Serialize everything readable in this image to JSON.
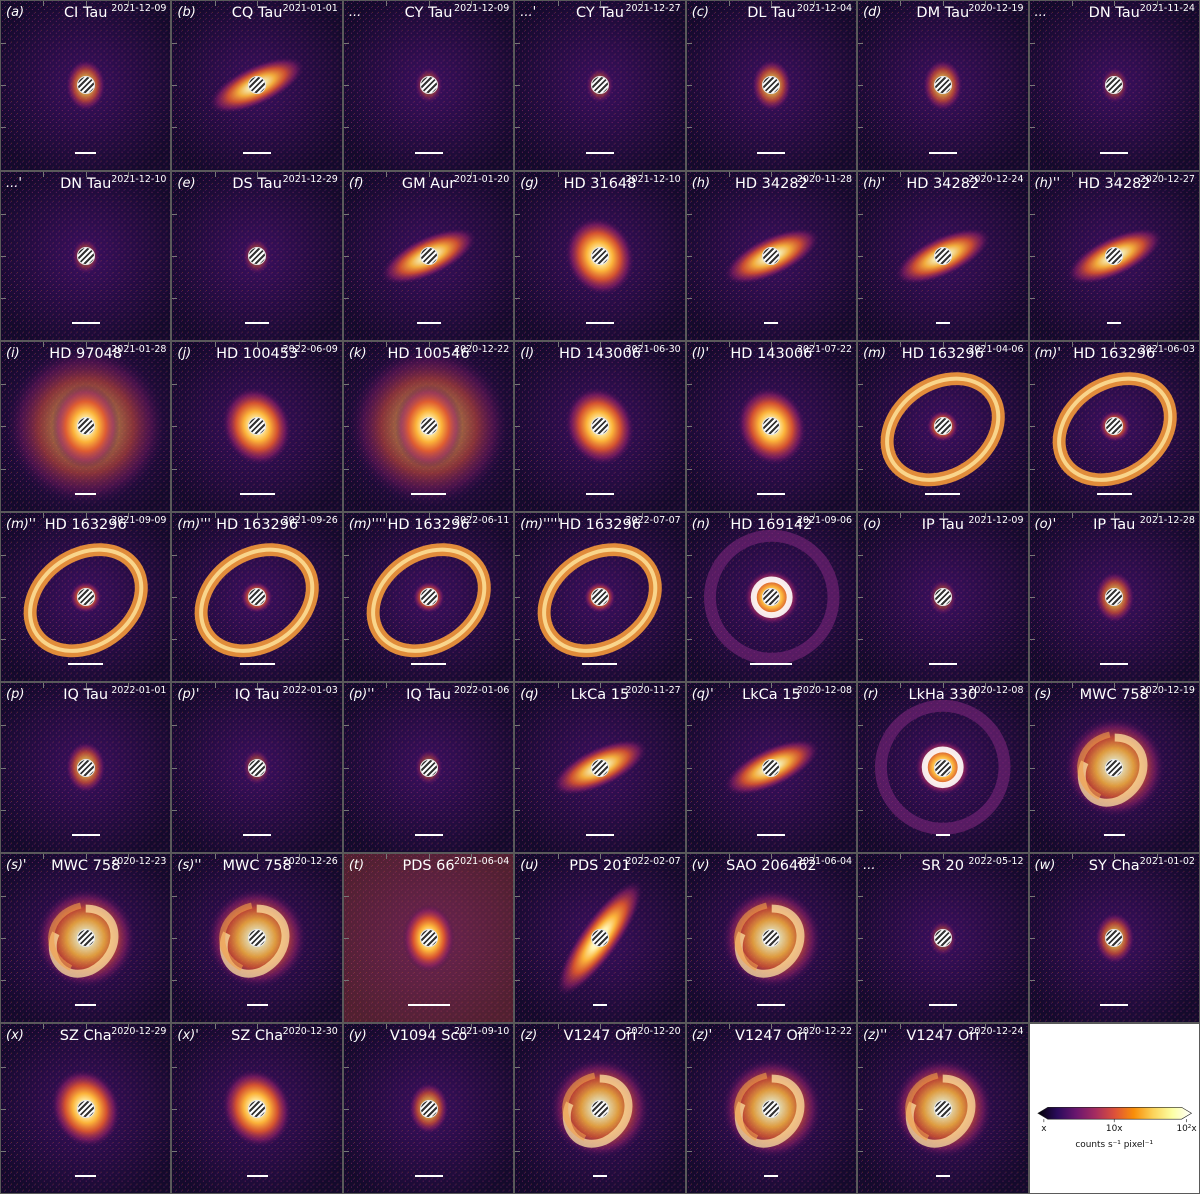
{
  "colors": {
    "background": "#120a2a",
    "mask_light": "#ffffff",
    "mask_dark": "#333333"
  },
  "panels": [
    {
      "label": "(a)",
      "name": "CI Tau",
      "date": "2021-12-09",
      "morph": "compact",
      "scale": 0.15
    },
    {
      "label": "(b)",
      "name": "CQ Tau",
      "date": "2021-01-01",
      "morph": "incl_disk",
      "scale": 0.2
    },
    {
      "label": "...",
      "name": "CY Tau",
      "date": "2021-12-09",
      "morph": "faint",
      "scale": 0.2
    },
    {
      "label": "...'",
      "name": "CY Tau",
      "date": "2021-12-27",
      "morph": "faint",
      "scale": 0.2
    },
    {
      "label": "(c)",
      "name": "DL Tau",
      "date": "2021-12-04",
      "morph": "compact",
      "scale": 0.2
    },
    {
      "label": "(d)",
      "name": "DM Tau",
      "date": "2020-12-19",
      "morph": "compact",
      "scale": 0.2
    },
    {
      "label": "...",
      "name": "DN Tau",
      "date": "2021-11-24",
      "morph": "faint",
      "scale": 0.2
    },
    {
      "label": "...'",
      "name": "DN Tau",
      "date": "2021-12-10",
      "morph": "faint",
      "scale": 0.2
    },
    {
      "label": "(e)",
      "name": "DS Tau",
      "date": "2021-12-29",
      "morph": "faint",
      "scale": 0.17
    },
    {
      "label": "(f)",
      "name": "GM Aur",
      "date": "2021-01-20",
      "morph": "incl_disk",
      "scale": 0.17
    },
    {
      "label": "(g)",
      "name": "HD 31648",
      "date": "2021-12-10",
      "morph": "bright_disk",
      "scale": 0.2
    },
    {
      "label": "(h)",
      "name": "HD 34282",
      "date": "2020-11-28",
      "morph": "incl_disk",
      "scale": 0.1
    },
    {
      "label": "(h)'",
      "name": "HD 34282",
      "date": "2020-12-24",
      "morph": "incl_disk",
      "scale": 0.1
    },
    {
      "label": "(h)''",
      "name": "HD 34282",
      "date": "2020-12-27",
      "morph": "incl_disk",
      "scale": 0.1
    },
    {
      "label": "(i)",
      "name": "HD 97048",
      "date": "2021-01-28",
      "morph": "halo",
      "scale": 0.15
    },
    {
      "label": "(j)",
      "name": "HD 100453",
      "date": "2022-06-09",
      "morph": "bright_disk",
      "scale": 0.25
    },
    {
      "label": "(k)",
      "name": "HD 100546",
      "date": "2020-12-22",
      "morph": "halo",
      "scale": 0.25
    },
    {
      "label": "(l)",
      "name": "HD 143006",
      "date": "2021-06-30",
      "morph": "bright_disk",
      "scale": 0.2
    },
    {
      "label": "(l)'",
      "name": "HD 143006",
      "date": "2021-07-22",
      "morph": "bright_disk",
      "scale": 0.2
    },
    {
      "label": "(m)",
      "name": "HD 163296",
      "date": "2021-04-06",
      "morph": "ring",
      "scale": 0.25
    },
    {
      "label": "(m)'",
      "name": "HD 163296",
      "date": "2021-06-03",
      "morph": "ring",
      "scale": 0.25
    },
    {
      "label": "(m)''",
      "name": "HD 163296",
      "date": "2021-09-09",
      "morph": "ring",
      "scale": 0.25
    },
    {
      "label": "(m)'''",
      "name": "HD 163296",
      "date": "2021-09-26",
      "morph": "ring",
      "scale": 0.25
    },
    {
      "label": "(m)''''",
      "name": "HD 163296",
      "date": "2022-06-11",
      "morph": "ring",
      "scale": 0.25
    },
    {
      "label": "(m)'''''",
      "name": "HD 163296",
      "date": "2022-07-07",
      "morph": "ring",
      "scale": 0.25
    },
    {
      "label": "(n)",
      "name": "HD 169142",
      "date": "2021-09-06",
      "morph": "face_ring",
      "scale": 0.3
    },
    {
      "label": "(o)",
      "name": "IP Tau",
      "date": "2021-12-09",
      "morph": "faint",
      "scale": 0.2
    },
    {
      "label": "(o)'",
      "name": "IP Tau",
      "date": "2021-12-28",
      "morph": "compact",
      "scale": 0.2
    },
    {
      "label": "(p)",
      "name": "IQ Tau",
      "date": "2022-01-01",
      "morph": "compact",
      "scale": 0.2
    },
    {
      "label": "(p)'",
      "name": "IQ Tau",
      "date": "2022-01-03",
      "morph": "faint",
      "scale": 0.2
    },
    {
      "label": "(p)''",
      "name": "IQ Tau",
      "date": "2022-01-06",
      "morph": "faint",
      "scale": 0.2
    },
    {
      "label": "(q)",
      "name": "LkCa 15",
      "date": "2020-11-27",
      "morph": "incl_disk",
      "scale": 0.2
    },
    {
      "label": "(q)'",
      "name": "LkCa 15",
      "date": "2020-12-08",
      "morph": "incl_disk",
      "scale": 0.2
    },
    {
      "label": "(r)",
      "name": "LkHa 330",
      "date": "2020-12-08",
      "morph": "face_ring",
      "scale": 0.1
    },
    {
      "label": "(s)",
      "name": "MWC 758",
      "date": "2020-12-19",
      "morph": "spiral",
      "scale": 0.15
    },
    {
      "label": "(s)'",
      "name": "MWC 758",
      "date": "2020-12-23",
      "morph": "spiral",
      "scale": 0.15
    },
    {
      "label": "(s)''",
      "name": "MWC 758",
      "date": "2020-12-26",
      "morph": "spiral",
      "scale": 0.15
    },
    {
      "label": "(t)",
      "name": "PDS 66",
      "date": "2021-06-04",
      "morph": "noisy",
      "scale": 0.3
    },
    {
      "label": "(u)",
      "name": "PDS 201",
      "date": "2022-02-07",
      "morph": "edge",
      "scale": 0.1
    },
    {
      "label": "(v)",
      "name": "SAO 206462",
      "date": "2021-06-04",
      "morph": "spiral",
      "scale": 0.2
    },
    {
      "label": "...",
      "name": "SR 20",
      "date": "2022-05-12",
      "morph": "faint",
      "scale": 0.2
    },
    {
      "label": "(w)",
      "name": "SY Cha",
      "date": "2021-01-02",
      "morph": "compact",
      "scale": 0.2
    },
    {
      "label": "(x)",
      "name": "SZ Cha",
      "date": "2020-12-29",
      "morph": "bright_disk",
      "scale": 0.15
    },
    {
      "label": "(x)'",
      "name": "SZ Cha",
      "date": "2020-12-30",
      "morph": "bright_disk",
      "scale": 0.15
    },
    {
      "label": "(y)",
      "name": "V1094 Sco",
      "date": "2021-09-10",
      "morph": "compact",
      "scale": 0.2
    },
    {
      "label": "(z)",
      "name": "V1247 Ori",
      "date": "2020-12-20",
      "morph": "spiral",
      "scale": 0.1
    },
    {
      "label": "(z)'",
      "name": "V1247 Ori",
      "date": "2020-12-22",
      "morph": "spiral",
      "scale": 0.1
    },
    {
      "label": "(z)''",
      "name": "V1247 Ori",
      "date": "2020-12-24",
      "morph": "spiral",
      "scale": 0.1
    }
  ],
  "colorbar": {
    "tick_labels": [
      "x",
      "10x",
      "10²x"
    ],
    "label": "counts s⁻¹ pixel⁻¹",
    "stops": [
      "#000004",
      "#2a0b5a",
      "#6a176e",
      "#a52c60",
      "#dd513a",
      "#f98e09",
      "#fbd35a",
      "#fcffa4",
      "#ffffff"
    ]
  }
}
